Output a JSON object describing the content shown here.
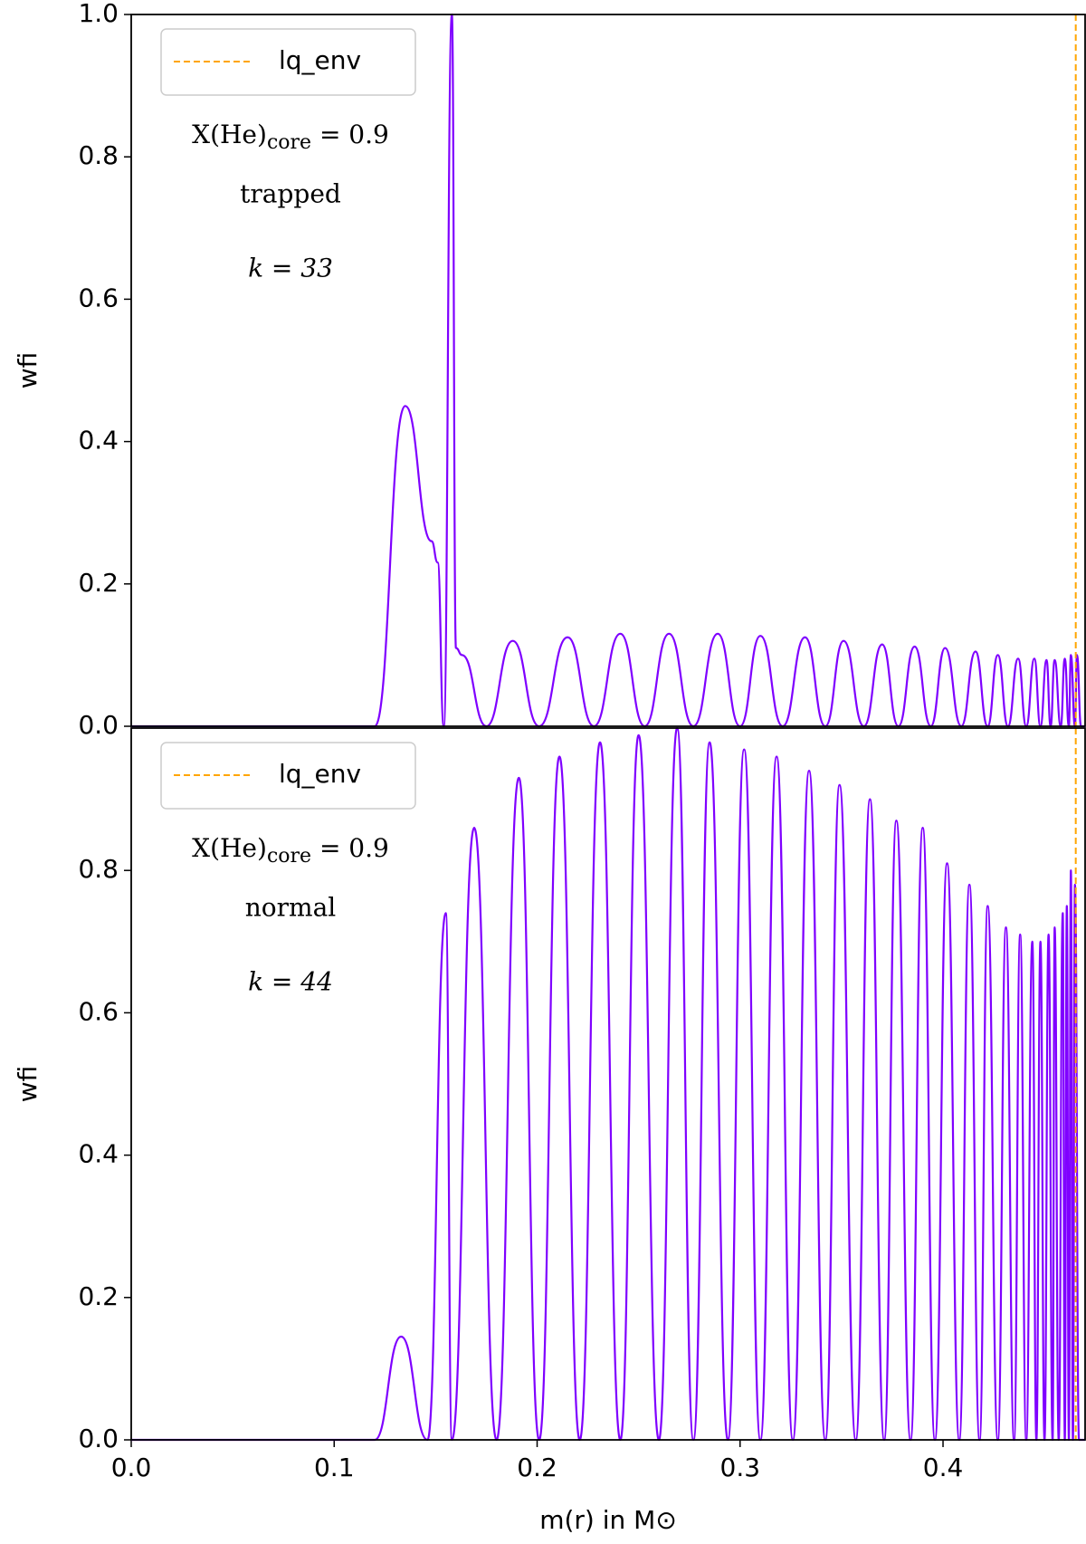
{
  "chart_data": [
    {
      "type": "line",
      "ylabel": "wfi",
      "xlim": [
        0,
        0.47
      ],
      "ylim": [
        0,
        1
      ],
      "yticks": [
        {
          "value": 0,
          "label": "0.0"
        },
        0.2,
        0.4,
        0.6,
        0.8,
        {
          "value": 1,
          "label": "1.0"
        }
      ],
      "series": [
        {
          "color": "#7f00ff",
          "x": [
            0,
            0.12,
            0.135,
            0.148,
            0.151,
            0.154,
            0.158,
            0.16,
            0.163,
            0.175,
            0.188,
            0.201,
            0.215,
            0.228,
            0.241,
            0.253,
            0.265,
            0.277,
            0.289,
            0.3,
            0.31,
            0.321,
            0.332,
            0.342,
            0.351,
            0.361,
            0.37,
            0.378,
            0.386,
            0.394,
            0.401,
            0.409,
            0.416,
            0.422,
            0.427,
            0.432,
            0.437,
            0.441,
            0.445,
            0.448,
            0.451,
            0.453,
            0.455,
            0.458,
            0.46,
            0.462,
            0.463,
            0.465,
            0.466,
            0.468,
            0.47
          ],
          "values": [
            0,
            0,
            0.45,
            0.26,
            0.23,
            0,
            1.0,
            0.11,
            0.1,
            0,
            0.12,
            0,
            0.125,
            0,
            0.13,
            0,
            0.13,
            0,
            0.13,
            0,
            0.127,
            0,
            0.125,
            0,
            0.12,
            0,
            0.115,
            0,
            0.112,
            0,
            0.11,
            0,
            0.105,
            0,
            0.1,
            0,
            0.095,
            0,
            0.095,
            0,
            0.093,
            0,
            0.093,
            0,
            0.095,
            0,
            0.1,
            0,
            0.1,
            0,
            0
          ]
        }
      ],
      "vline": {
        "label": "lq_env",
        "x": 0.4654,
        "color": "#ffa500"
      },
      "annotations": {
        "base": "X(He)",
        "sub": "core",
        "rest": " = 0.9",
        "mode": "trapped",
        "k": "k = 33"
      }
    },
    {
      "type": "line",
      "ylabel": "wfi",
      "xlabel": "m(r) in M⊙",
      "xlim": [
        0,
        0.47
      ],
      "ylim": [
        0,
        1
      ],
      "yticks": [
        {
          "value": 0,
          "label": "0.0"
        },
        0.2,
        0.4,
        0.6,
        0.8
      ],
      "xticks": [
        {
          "value": 0,
          "label": "0.0"
        },
        0.1,
        0.2,
        0.3,
        0.4
      ],
      "series": [
        {
          "color": "#7f00ff",
          "x": [
            0,
            0.12,
            0.133,
            0.146,
            0.155,
            0.158,
            0.169,
            0.18,
            0.191,
            0.201,
            0.211,
            0.221,
            0.231,
            0.241,
            0.25,
            0.26,
            0.269,
            0.277,
            0.285,
            0.294,
            0.302,
            0.31,
            0.318,
            0.326,
            0.334,
            0.342,
            0.349,
            0.357,
            0.364,
            0.371,
            0.377,
            0.384,
            0.39,
            0.396,
            0.402,
            0.408,
            0.413,
            0.418,
            0.422,
            0.427,
            0.431,
            0.435,
            0.438,
            0.441,
            0.444,
            0.446,
            0.448,
            0.45,
            0.452,
            0.454,
            0.455,
            0.457,
            0.459,
            0.46,
            0.461,
            0.462,
            0.463,
            0.464,
            0.465,
            0.467,
            0.47
          ],
          "values": [
            0,
            0,
            0.145,
            0,
            0.74,
            0,
            0.86,
            0,
            0.93,
            0,
            0.96,
            0,
            0.98,
            0,
            0.99,
            0,
            1.0,
            0,
            0.98,
            0,
            0.97,
            0,
            0.96,
            0,
            0.94,
            0,
            0.92,
            0,
            0.9,
            0,
            0.87,
            0,
            0.86,
            0,
            0.81,
            0,
            0.78,
            0,
            0.75,
            0,
            0.72,
            0,
            0.71,
            0,
            0.7,
            0,
            0.7,
            0,
            0.71,
            0,
            0.72,
            0,
            0.74,
            0,
            0.75,
            0,
            0.8,
            0,
            0.78,
            0,
            0
          ]
        }
      ],
      "vline": {
        "label": "lq_env",
        "x": 0.4654,
        "color": "#ffa500"
      },
      "annotations": {
        "base": "X(He)",
        "sub": "core",
        "rest": " = 0.9",
        "mode": "normal",
        "k": "k = 44"
      }
    }
  ]
}
